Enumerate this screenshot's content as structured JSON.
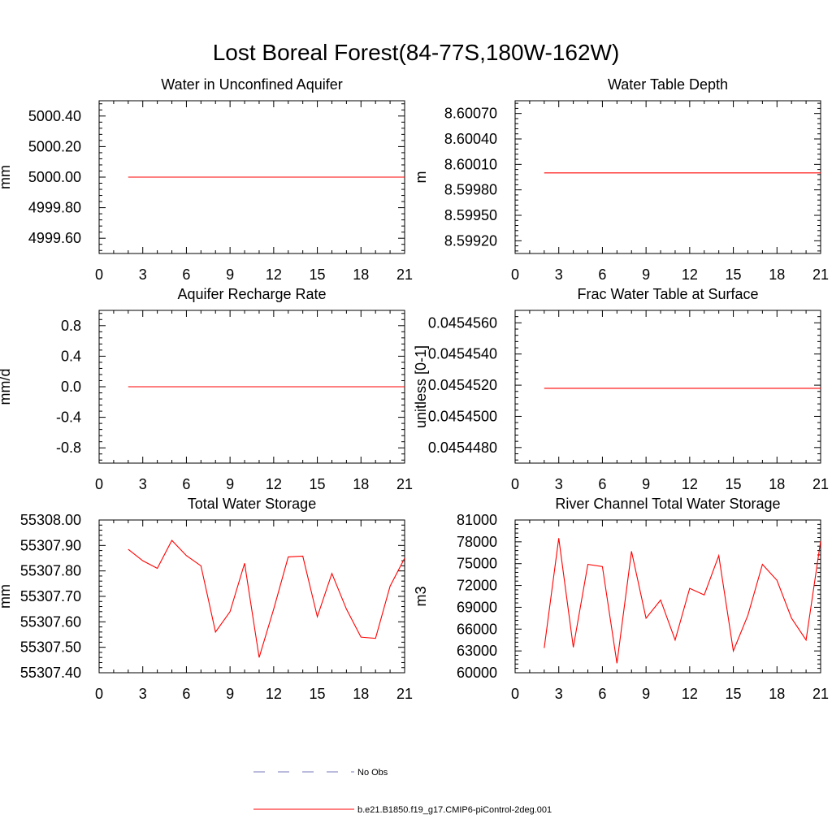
{
  "figure_title": "Lost Boreal Forest(84-77S,180W-162W)",
  "colors": {
    "model": "#ff0000",
    "obs": "#7777bb",
    "axis": "#000000"
  },
  "legend": {
    "items": [
      {
        "label": "No Obs",
        "style": "dashed",
        "color": "#7777bb"
      },
      {
        "label": "b.e21.B1850.f19_g17.CMIP6-piControl-2deg.001",
        "style": "solid",
        "color": "#ff0000"
      }
    ]
  },
  "chart_data": [
    {
      "type": "line",
      "title": "Water in Unconfined Aquifer",
      "ylabel": "mm",
      "xlim": [
        0,
        21
      ],
      "xticks": [
        "0",
        "3",
        "6",
        "9",
        "12",
        "15",
        "18",
        "21"
      ],
      "ylim": [
        4999.5,
        5000.5
      ],
      "yticks": [
        "5000.40",
        "5000.20",
        "5000.00",
        "4999.80",
        "4999.60"
      ],
      "series": [
        {
          "name": "b.e21.B1850.f19_g17.CMIP6-piControl-2deg.001",
          "x": [
            2,
            21
          ],
          "values": [
            5000.0,
            5000.0
          ]
        }
      ]
    },
    {
      "type": "line",
      "title": "Water Table Depth",
      "ylabel": "m",
      "xlim": [
        0,
        21
      ],
      "xticks": [
        "0",
        "3",
        "6",
        "9",
        "12",
        "15",
        "18",
        "21"
      ],
      "ylim": [
        8.59905,
        8.60085
      ],
      "yticks": [
        "8.60070",
        "8.60040",
        "8.60010",
        "8.59980",
        "8.59950",
        "8.59920"
      ],
      "series": [
        {
          "name": "b.e21.B1850.f19_g17.CMIP6-piControl-2deg.001",
          "x": [
            2,
            21
          ],
          "values": [
            8.6,
            8.6
          ]
        }
      ]
    },
    {
      "type": "line",
      "title": "Aquifer Recharge Rate",
      "ylabel": "mm/d",
      "xlim": [
        0,
        21
      ],
      "xticks": [
        "0",
        "3",
        "6",
        "9",
        "12",
        "15",
        "18",
        "21"
      ],
      "ylim": [
        -1.0,
        1.0
      ],
      "yticks": [
        "0.8",
        "0.4",
        "0.0",
        "-0.4",
        "-0.8"
      ],
      "series": [
        {
          "name": "b.e21.B1850.f19_g17.CMIP6-piControl-2deg.001",
          "x": [
            2,
            21
          ],
          "values": [
            0.0,
            0.0
          ]
        }
      ]
    },
    {
      "type": "line",
      "title": "Frac Water Table at Surface",
      "ylabel": "unitless [0-1]",
      "xlim": [
        0,
        21
      ],
      "xticks": [
        "0",
        "3",
        "6",
        "9",
        "12",
        "15",
        "18",
        "21"
      ],
      "ylim": [
        0.045447,
        0.0454568
      ],
      "yticks": [
        "0.0454560",
        "0.0454540",
        "0.0454520",
        "0.0454500",
        "0.0454480"
      ],
      "series": [
        {
          "name": "b.e21.B1850.f19_g17.CMIP6-piControl-2deg.001",
          "x": [
            2,
            21
          ],
          "values": [
            0.0454518,
            0.0454518
          ]
        }
      ]
    },
    {
      "type": "line",
      "title": "Total Water Storage",
      "ylabel": "mm",
      "xlim": [
        0,
        21
      ],
      "xticks": [
        "0",
        "3",
        "6",
        "9",
        "12",
        "15",
        "18",
        "21"
      ],
      "ylim": [
        55307.4,
        55308.0
      ],
      "yticks": [
        "55308.00",
        "55307.90",
        "55307.80",
        "55307.70",
        "55307.60",
        "55307.50",
        "55307.40"
      ],
      "series": [
        {
          "name": "b.e21.B1850.f19_g17.CMIP6-piControl-2deg.001",
          "x": [
            2,
            3,
            4,
            5,
            6,
            7,
            8,
            9,
            10,
            11,
            12,
            13,
            14,
            15,
            16,
            17,
            18,
            19,
            20,
            21
          ],
          "values": [
            55307.885,
            55307.84,
            55307.81,
            55307.92,
            55307.86,
            55307.82,
            55307.56,
            55307.64,
            55307.83,
            55307.46,
            55307.65,
            55307.855,
            55307.858,
            55307.62,
            55307.79,
            55307.65,
            55307.54,
            55307.535,
            55307.74,
            55307.85
          ]
        }
      ]
    },
    {
      "type": "line",
      "title": "River Channel Total Water Storage",
      "ylabel": "m3",
      "xlim": [
        0,
        21
      ],
      "xticks": [
        "0",
        "3",
        "6",
        "9",
        "12",
        "15",
        "18",
        "21"
      ],
      "ylim": [
        60000,
        81000
      ],
      "yticks": [
        "81000",
        "78000",
        "75000",
        "72000",
        "69000",
        "66000",
        "63000",
        "60000"
      ],
      "series": [
        {
          "name": "b.e21.B1850.f19_g17.CMIP6-piControl-2deg.001",
          "x": [
            2,
            3,
            4,
            5,
            6,
            7,
            8,
            9,
            10,
            11,
            12,
            13,
            14,
            15,
            16,
            17,
            18,
            19,
            20,
            21
          ],
          "values": [
            63400,
            78500,
            63500,
            74900,
            74600,
            61300,
            76700,
            67500,
            70000,
            64500,
            71600,
            70700,
            76100,
            63000,
            67900,
            74900,
            72700,
            67500,
            64500,
            78100
          ]
        }
      ]
    }
  ]
}
